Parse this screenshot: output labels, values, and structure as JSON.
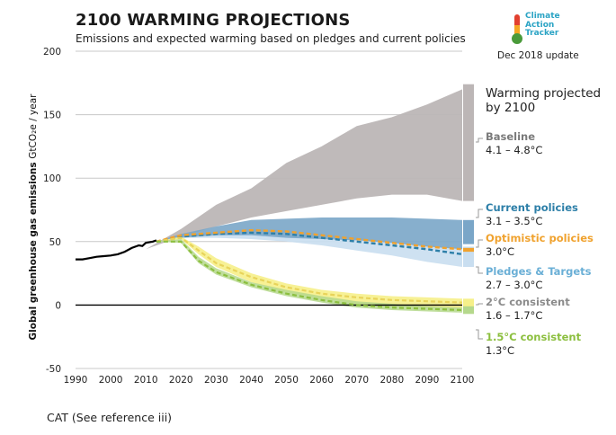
{
  "header": {
    "title": "2100 WARMING PROJECTIONS",
    "subtitle": "Emissions and expected warming based on pledges and current policies",
    "update": "Dec 2018 update"
  },
  "logo": {
    "lines": [
      "Climate",
      "Action",
      "Tracker"
    ],
    "icon": "thermometer-icon",
    "color": "#2aa3c4"
  },
  "caption": "CAT (See reference iii)",
  "chart_data": {
    "type": "area",
    "title": "2100 WARMING PROJECTIONS",
    "subtitle": "Emissions and expected warming based on pledges and current policies",
    "ylabel": "Global greenhouse gas emissions",
    "yunit": "GtCO₂e / year",
    "xlim": [
      1990,
      2100
    ],
    "ylim": [
      -50,
      200
    ],
    "x_ticks": [
      1990,
      2000,
      2010,
      2020,
      2030,
      2040,
      2050,
      2060,
      2070,
      2080,
      2090,
      2100
    ],
    "y_ticks": [
      -50,
      0,
      50,
      100,
      150,
      200
    ],
    "grid": "horizontal",
    "legend_heading": [
      "Warming projected",
      "by 2100"
    ],
    "historical": {
      "color": "#000000",
      "points": [
        [
          1990,
          36
        ],
        [
          1992,
          36
        ],
        [
          1994,
          37
        ],
        [
          1996,
          38
        ],
        [
          1998,
          38.5
        ],
        [
          2000,
          39
        ],
        [
          2002,
          40
        ],
        [
          2004,
          42
        ],
        [
          2006,
          45
        ],
        [
          2008,
          47
        ],
        [
          2009,
          46.5
        ],
        [
          2010,
          49
        ],
        [
          2012,
          50
        ],
        [
          2013,
          51
        ]
      ]
    },
    "series": [
      {
        "name": "Baseline",
        "range": "4.1 – 4.8°C",
        "color": "#8c8c8c",
        "fill": "#bcb6b6",
        "upper": [
          [
            2010,
            44
          ],
          [
            2020,
            60
          ],
          [
            2030,
            79
          ],
          [
            2040,
            92
          ],
          [
            2050,
            112
          ],
          [
            2060,
            125
          ],
          [
            2070,
            141
          ],
          [
            2080,
            148
          ],
          [
            2090,
            158
          ],
          [
            2100,
            170
          ]
        ],
        "lower": [
          [
            2010,
            44
          ],
          [
            2020,
            54
          ],
          [
            2030,
            62
          ],
          [
            2040,
            69
          ],
          [
            2050,
            74
          ],
          [
            2060,
            79
          ],
          [
            2070,
            84
          ],
          [
            2080,
            87
          ],
          [
            2090,
            87
          ],
          [
            2100,
            82
          ]
        ],
        "bar": [
          82,
          174
        ]
      },
      {
        "name": "Current policies",
        "range": "3.1 – 3.5°C",
        "color": "#2d7fa8",
        "fill": "#7aa6c8",
        "upper": [
          [
            2013,
            50
          ],
          [
            2020,
            56
          ],
          [
            2030,
            62
          ],
          [
            2040,
            67
          ],
          [
            2050,
            68
          ],
          [
            2060,
            69
          ],
          [
            2070,
            69
          ],
          [
            2080,
            69
          ],
          [
            2090,
            68
          ],
          [
            2100,
            67
          ]
        ],
        "lower": [
          [
            2013,
            50
          ],
          [
            2020,
            53
          ],
          [
            2030,
            55
          ],
          [
            2040,
            55
          ],
          [
            2050,
            53
          ],
          [
            2060,
            52
          ],
          [
            2070,
            51
          ],
          [
            2080,
            49
          ],
          [
            2090,
            46
          ],
          [
            2100,
            44
          ]
        ],
        "bar": [
          48,
          67
        ]
      },
      {
        "name": "Optimistic policies",
        "range": "3.0°C",
        "color": "#f0a22e",
        "fill": "#f0a22e",
        "line": [
          [
            2013,
            50
          ],
          [
            2020,
            55
          ],
          [
            2030,
            57
          ],
          [
            2040,
            59
          ],
          [
            2050,
            58
          ],
          [
            2060,
            55
          ],
          [
            2070,
            52
          ],
          [
            2080,
            49
          ],
          [
            2090,
            46
          ],
          [
            2100,
            44
          ]
        ],
        "bar": [
          42,
          45
        ]
      },
      {
        "name": "Pledges & Targets",
        "range": "2.7 – 3.0°C",
        "color": "#6aafd6",
        "fill": "#c9def0",
        "upper": [
          [
            2013,
            50
          ],
          [
            2020,
            55
          ],
          [
            2030,
            58
          ],
          [
            2040,
            60
          ],
          [
            2050,
            59
          ],
          [
            2060,
            56
          ],
          [
            2070,
            53
          ],
          [
            2080,
            50
          ],
          [
            2090,
            47
          ],
          [
            2100,
            45
          ]
        ],
        "lower": [
          [
            2013,
            50
          ],
          [
            2020,
            53
          ],
          [
            2030,
            53
          ],
          [
            2040,
            52
          ],
          [
            2050,
            50
          ],
          [
            2060,
            47
          ],
          [
            2070,
            43
          ],
          [
            2080,
            39
          ],
          [
            2090,
            34
          ],
          [
            2100,
            30
          ]
        ],
        "lines": [
          {
            "color": "#2d7fa8",
            "points": [
              [
                2013,
                50
              ],
              [
                2020,
                54
              ],
              [
                2030,
                56
              ],
              [
                2040,
                57
              ],
              [
                2050,
                56
              ],
              [
                2060,
                53
              ],
              [
                2070,
                50
              ],
              [
                2080,
                47
              ],
              [
                2090,
                44
              ],
              [
                2100,
                40
              ]
            ]
          },
          {
            "color": "#f0a22e",
            "points": [
              [
                2013,
                50
              ],
              [
                2020,
                55
              ],
              [
                2030,
                57
              ],
              [
                2040,
                59
              ],
              [
                2050,
                58
              ],
              [
                2060,
                55
              ],
              [
                2070,
                52
              ],
              [
                2080,
                49
              ],
              [
                2090,
                46
              ],
              [
                2100,
                44
              ]
            ]
          }
        ],
        "bar": [
          30,
          46
        ]
      },
      {
        "name": "2°C consistent",
        "range": "1.6 – 1.7°C",
        "color": "#8c8c8c",
        "fill": "#f6f08a",
        "upper": [
          [
            2013,
            50
          ],
          [
            2020,
            54
          ],
          [
            2025,
            46
          ],
          [
            2030,
            37
          ],
          [
            2040,
            25
          ],
          [
            2050,
            17
          ],
          [
            2060,
            12
          ],
          [
            2070,
            9
          ],
          [
            2080,
            7
          ],
          [
            2090,
            6
          ],
          [
            2100,
            5
          ]
        ],
        "lower": [
          [
            2013,
            50
          ],
          [
            2020,
            52
          ],
          [
            2025,
            40
          ],
          [
            2030,
            30
          ],
          [
            2040,
            18
          ],
          [
            2050,
            10
          ],
          [
            2060,
            5
          ],
          [
            2070,
            1
          ],
          [
            2080,
            -1
          ],
          [
            2090,
            -2
          ],
          [
            2100,
            -3
          ]
        ],
        "line": [
          [
            2013,
            50
          ],
          [
            2020,
            53
          ],
          [
            2025,
            43
          ],
          [
            2030,
            33
          ],
          [
            2040,
            22
          ],
          [
            2050,
            14
          ],
          [
            2060,
            9
          ],
          [
            2070,
            6
          ],
          [
            2080,
            4
          ],
          [
            2090,
            3
          ],
          [
            2100,
            2
          ]
        ],
        "line_color": "#e8d35a",
        "bar": [
          -3,
          5
        ]
      },
      {
        "name": "1.5°C consistent",
        "range": "1.3°C",
        "color": "#8cbf3f",
        "fill": "#b5d88c",
        "upper": [
          [
            2013,
            50
          ],
          [
            2020,
            52
          ],
          [
            2025,
            38
          ],
          [
            2030,
            29
          ],
          [
            2040,
            18
          ],
          [
            2050,
            12
          ],
          [
            2060,
            7
          ],
          [
            2070,
            3
          ],
          [
            2080,
            1
          ],
          [
            2090,
            -1
          ],
          [
            2100,
            -2
          ]
        ],
        "lower": [
          [
            2013,
            50
          ],
          [
            2020,
            49
          ],
          [
            2025,
            33
          ],
          [
            2030,
            24
          ],
          [
            2040,
            14
          ],
          [
            2050,
            7
          ],
          [
            2060,
            2
          ],
          [
            2070,
            -2
          ],
          [
            2080,
            -4
          ],
          [
            2090,
            -5
          ],
          [
            2100,
            -6
          ]
        ],
        "line": [
          [
            2013,
            50
          ],
          [
            2020,
            50
          ],
          [
            2025,
            35
          ],
          [
            2030,
            26
          ],
          [
            2040,
            16
          ],
          [
            2050,
            9
          ],
          [
            2060,
            4
          ],
          [
            2070,
            0
          ],
          [
            2080,
            -2
          ],
          [
            2090,
            -3
          ],
          [
            2100,
            -4
          ]
        ],
        "bar": [
          -7,
          -1
        ]
      }
    ]
  }
}
